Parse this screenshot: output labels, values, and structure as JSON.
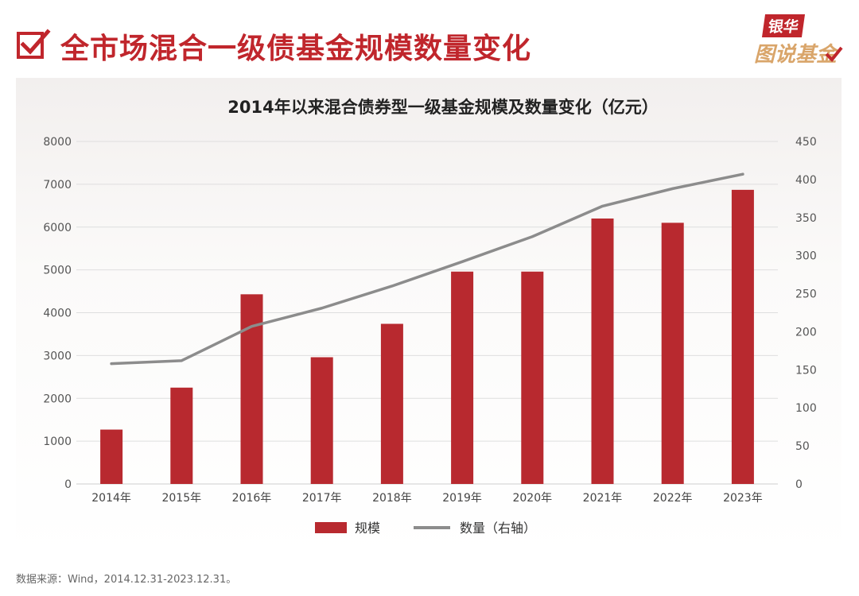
{
  "header": {
    "title": "全市场混合一级债基金规模数量变化",
    "brand_top": "银华",
    "brand_bottom": "图说基金"
  },
  "chart_data": {
    "type": "bar",
    "title": "2014年以来混合债券型一级基金规模及数量变化（亿元）",
    "categories": [
      "2014年",
      "2015年",
      "2016年",
      "2017年",
      "2018年",
      "2019年",
      "2020年",
      "2021年",
      "2022年",
      "2023年"
    ],
    "series": [
      {
        "name": "规模",
        "type": "bar",
        "axis": "left",
        "color": "#b8292f",
        "values": [
          1270,
          2250,
          4430,
          2960,
          3740,
          4960,
          4960,
          6200,
          6100,
          6870
        ]
      },
      {
        "name": "数量（右轴）",
        "type": "line",
        "axis": "right",
        "color": "#8c8c8c",
        "values": [
          158,
          162,
          207,
          231,
          260,
          292,
          325,
          365,
          388,
          407
        ]
      }
    ],
    "y_left": {
      "min": 0,
      "max": 8000,
      "step": 1000
    },
    "y_right": {
      "min": 0,
      "max": 450,
      "step": 50
    },
    "grid": true,
    "legend_position": "bottom-center"
  },
  "footer": {
    "source": "数据来源：Wind，2014.12.31-2023.12.31。"
  }
}
